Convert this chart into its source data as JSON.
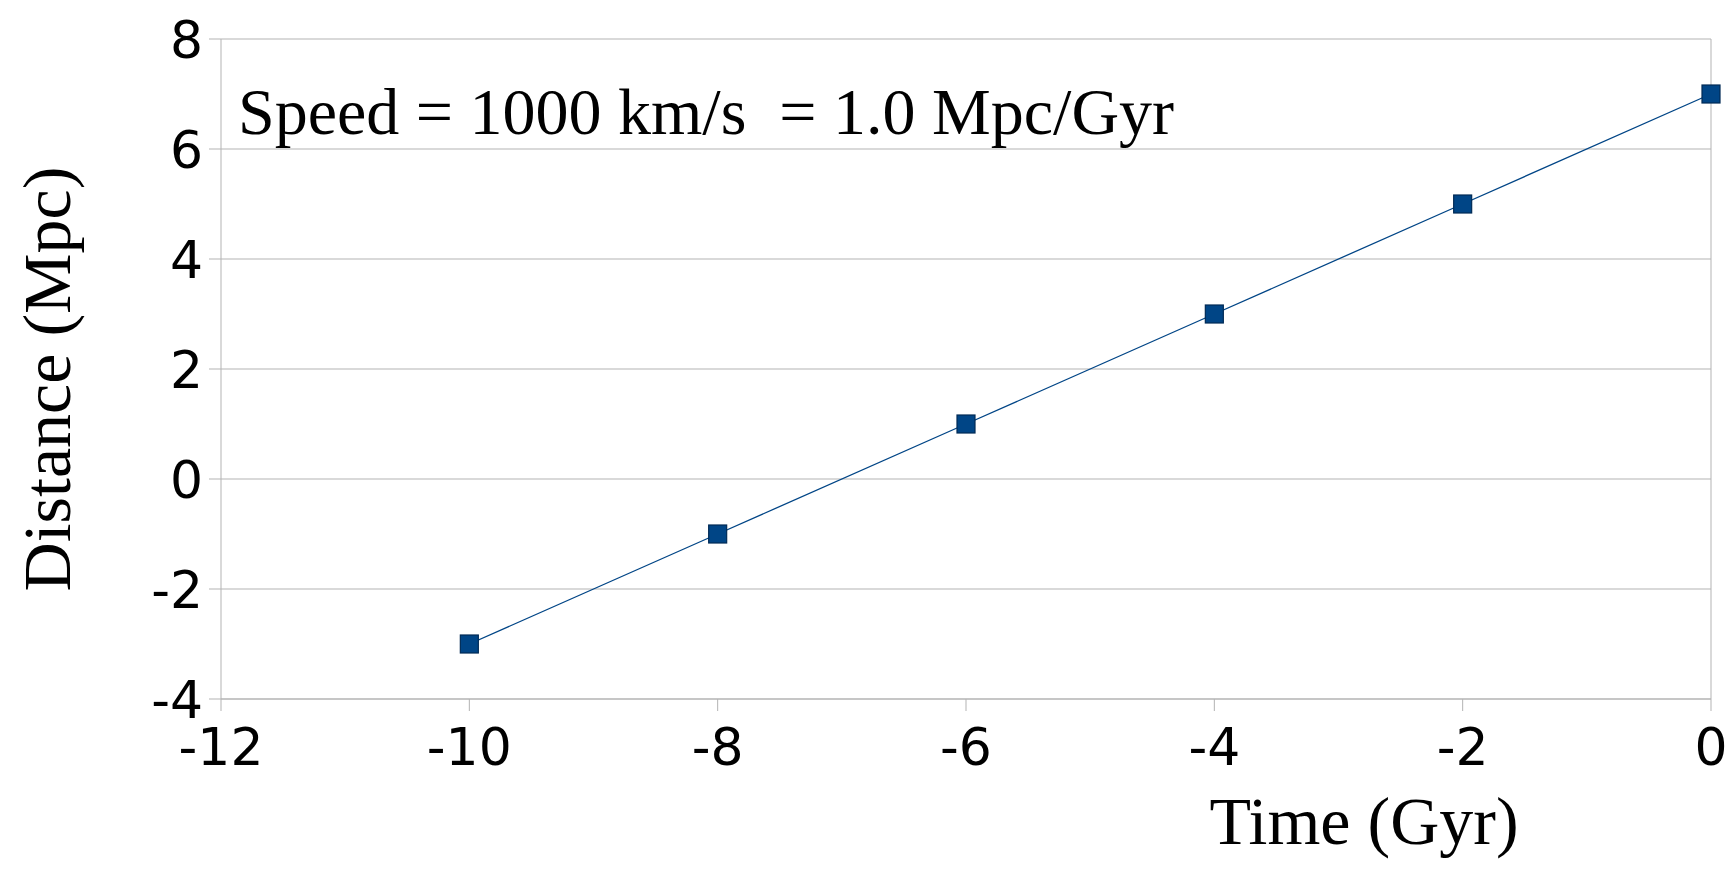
{
  "chart_data": {
    "type": "line",
    "xlabel": "Time (Gyr)",
    "ylabel": "Distance (Mpc)",
    "annotations": [
      "Speed = 1000 km/s  = 1.0 Mpc/Gyr"
    ],
    "x": [
      -10,
      -8,
      -6,
      -4,
      -2,
      0
    ],
    "series": [
      {
        "color": "#004586",
        "values": [
          -3,
          -1,
          1,
          3,
          5,
          7
        ]
      }
    ],
    "xlim": [
      -12,
      0
    ],
    "xticks": [
      -12,
      -10,
      -8,
      -6,
      -4,
      -2,
      0
    ],
    "ylim": [
      -4,
      8
    ],
    "yticks": [
      -4,
      -2,
      0,
      2,
      4,
      6,
      8
    ],
    "grid": "y",
    "marker": "square",
    "line_style": "solid"
  }
}
